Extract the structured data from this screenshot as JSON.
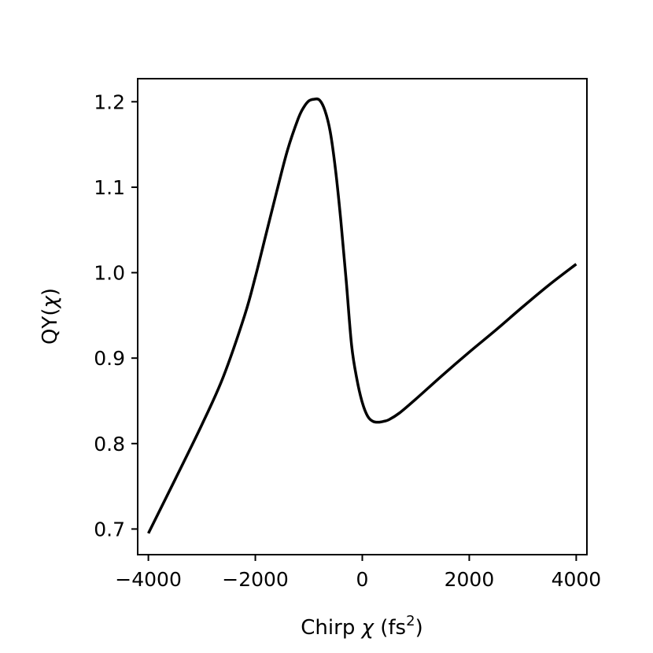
{
  "chart_data": {
    "type": "line",
    "title": "",
    "xlabel": "Chirp χ (fs²)",
    "xlabel_parts": {
      "main": "Chirp ",
      "symbol": "χ",
      "unit_open": " (fs",
      "unit_sup": "2",
      "unit_close": ")"
    },
    "ylabel": "QY(χ)",
    "ylabel_parts": {
      "main": "QY(",
      "symbol": "χ",
      "close": ")"
    },
    "xlim": [
      -4200,
      4200
    ],
    "ylim": [
      0.67,
      1.227
    ],
    "xticks": [
      -4000,
      -2000,
      0,
      2000,
      4000
    ],
    "xtick_labels": [
      "−4000",
      "−2000",
      "0",
      "2000",
      "4000"
    ],
    "yticks": [
      0.7,
      0.8,
      0.9,
      1.0,
      1.1,
      1.2
    ],
    "ytick_labels": [
      "0.7",
      "0.8",
      "0.9",
      "1.0",
      "1.1",
      "1.2"
    ],
    "grid": false,
    "series": [
      {
        "color": "#000000",
        "x": [
          -4000,
          -3500,
          -3000,
          -2600,
          -2200,
          -2000,
          -1800,
          -1600,
          -1400,
          -1200,
          -1100,
          -1000,
          -900,
          -800,
          -700,
          -600,
          -500,
          -400,
          -300,
          -200,
          -100,
          0,
          100,
          200,
          300,
          400,
          500,
          700,
          1000,
          1500,
          2000,
          2500,
          3000,
          3500,
          4000
        ],
        "y": [
          0.695,
          0.758,
          0.822,
          0.878,
          0.95,
          0.995,
          1.045,
          1.095,
          1.143,
          1.18,
          1.193,
          1.201,
          1.203,
          1.202,
          1.19,
          1.165,
          1.12,
          1.06,
          0.99,
          0.915,
          0.875,
          0.848,
          0.832,
          0.826,
          0.825,
          0.826,
          0.828,
          0.836,
          0.852,
          0.88,
          0.907,
          0.933,
          0.96,
          0.986,
          1.01
        ]
      }
    ]
  }
}
